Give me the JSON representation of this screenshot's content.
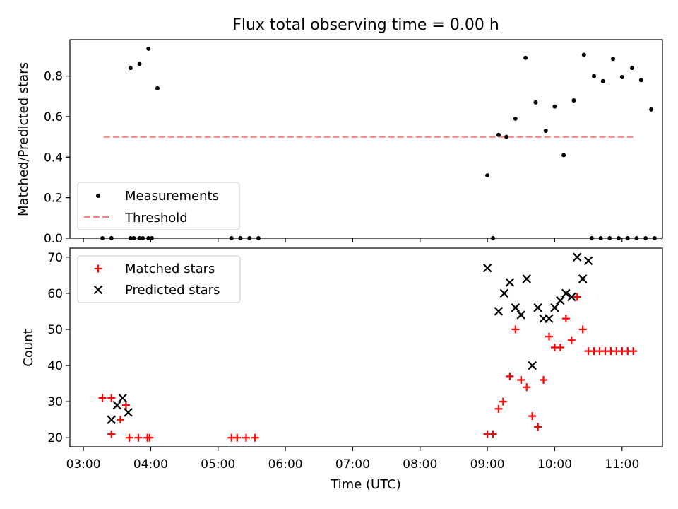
{
  "chart_data": [
    {
      "type": "scatter",
      "title": "Flux total observing time = 0.00 h",
      "ylabel": "Matched/Predicted stars",
      "xlabel": "",
      "ylim": [
        0,
        0.98
      ],
      "yticks": [
        "0.0",
        "0.2",
        "0.4",
        "0.6",
        "0.8"
      ],
      "ytick_values": [
        0,
        0.2,
        0.4,
        0.6,
        0.8
      ],
      "grid": false,
      "legend": {
        "placement": "lower-left",
        "entries": [
          "Measurements",
          "Threshold"
        ]
      },
      "series": [
        {
          "name": "Measurements",
          "marker": "dot",
          "color": "#000000",
          "points": [
            [
              "03:17",
              0
            ],
            [
              "03:25",
              0
            ],
            [
              "03:25",
              0
            ],
            [
              "03:42",
              0.84
            ],
            [
              "03:50",
              0.86
            ],
            [
              "03:58",
              0.935
            ],
            [
              "04:06",
              0.74
            ],
            [
              "03:42",
              0
            ],
            [
              "03:50",
              0
            ],
            [
              "03:58",
              0
            ],
            [
              "03:45",
              0
            ],
            [
              "03:53",
              0
            ],
            [
              "04:01",
              0
            ],
            [
              "05:12",
              0
            ],
            [
              "05:20",
              0
            ],
            [
              "05:28",
              0
            ],
            [
              "05:36",
              0
            ],
            [
              "09:00",
              0.31
            ],
            [
              "09:05",
              0
            ],
            [
              "09:10",
              0.51
            ],
            [
              "09:17",
              0.5
            ],
            [
              "09:25",
              0.59
            ],
            [
              "09:34",
              0.89
            ],
            [
              "09:43",
              0.67
            ],
            [
              "09:52",
              0.53
            ],
            [
              "10:00",
              0.65
            ],
            [
              "10:08",
              0.41
            ],
            [
              "10:17",
              0.68
            ],
            [
              "10:26",
              0.905
            ],
            [
              "10:35",
              0.8
            ],
            [
              "10:43",
              0.775
            ],
            [
              "10:52",
              0.885
            ],
            [
              "11:00",
              0.795
            ],
            [
              "11:09",
              0.84
            ],
            [
              "11:17",
              0.78
            ],
            [
              "11:26",
              0.635
            ],
            [
              "10:33",
              0
            ],
            [
              "10:41",
              0
            ],
            [
              "10:49",
              0
            ],
            [
              "10:57",
              0
            ],
            [
              "11:05",
              0
            ],
            [
              "11:13",
              0
            ],
            [
              "11:21",
              0
            ],
            [
              "11:29",
              0
            ],
            [
              "11:37",
              0
            ],
            [
              "11:45",
              0
            ]
          ]
        },
        {
          "name": "Threshold",
          "style": "dashed",
          "color": "#ff7f7f",
          "y": 0.5,
          "x_range": [
            "03:18",
            "11:12"
          ]
        }
      ]
    },
    {
      "type": "scatter",
      "title": "",
      "xlabel": "Time (UTC)",
      "ylabel": "Count",
      "ylim": [
        17.5,
        72.5
      ],
      "yticks": [
        "20",
        "30",
        "40",
        "50",
        "60",
        "70"
      ],
      "ytick_values": [
        20,
        30,
        40,
        50,
        60,
        70
      ],
      "xticks": [
        "03:00",
        "04:00",
        "05:00",
        "06:00",
        "07:00",
        "08:00",
        "09:00",
        "10:00",
        "11:00"
      ],
      "xlim": [
        "02:48",
        "11:36"
      ],
      "grid": false,
      "legend": {
        "placement": "top-left",
        "entries": [
          "Matched stars",
          "Predicted stars"
        ]
      },
      "series": [
        {
          "name": "Matched stars",
          "marker": "plus",
          "color": "#ff0000",
          "points": [
            [
              "03:17",
              31
            ],
            [
              "03:25",
              31
            ],
            [
              "03:25",
              21
            ],
            [
              "03:33",
              25
            ],
            [
              "03:38",
              29
            ],
            [
              "03:41",
              20
            ],
            [
              "03:49",
              20
            ],
            [
              "03:57",
              20
            ],
            [
              "03:59",
              20
            ],
            [
              "05:12",
              20
            ],
            [
              "05:17",
              20
            ],
            [
              "05:25",
              20
            ],
            [
              "05:33",
              20
            ],
            [
              "09:00",
              21
            ],
            [
              "09:05",
              21
            ],
            [
              "09:10",
              28
            ],
            [
              "09:14",
              30
            ],
            [
              "09:20",
              37
            ],
            [
              "09:25",
              50
            ],
            [
              "09:30",
              36
            ],
            [
              "09:35",
              34
            ],
            [
              "09:40",
              26
            ],
            [
              "09:45",
              23
            ],
            [
              "09:50",
              36
            ],
            [
              "09:55",
              48
            ],
            [
              "10:00",
              45
            ],
            [
              "10:05",
              45
            ],
            [
              "10:10",
              53
            ],
            [
              "10:15",
              47
            ],
            [
              "10:20",
              59
            ],
            [
              "10:25",
              50
            ],
            [
              "10:30",
              44
            ],
            [
              "10:35",
              44
            ],
            [
              "10:40",
              44
            ],
            [
              "10:45",
              44
            ],
            [
              "10:50",
              44
            ],
            [
              "10:55",
              44
            ],
            [
              "11:00",
              44
            ],
            [
              "11:05",
              44
            ],
            [
              "11:10",
              44
            ]
          ]
        },
        {
          "name": "Predicted stars",
          "marker": "x",
          "color": "#000000",
          "points": [
            [
              "03:25",
              25
            ],
            [
              "03:30",
              29
            ],
            [
              "03:35",
              31
            ],
            [
              "03:40",
              27
            ],
            [
              "09:00",
              67
            ],
            [
              "09:10",
              55
            ],
            [
              "09:15",
              60
            ],
            [
              "09:20",
              63
            ],
            [
              "09:25",
              56
            ],
            [
              "09:30",
              54
            ],
            [
              "09:35",
              64
            ],
            [
              "09:40",
              40
            ],
            [
              "09:45",
              56
            ],
            [
              "09:50",
              53
            ],
            [
              "09:55",
              53
            ],
            [
              "10:00",
              56
            ],
            [
              "10:05",
              58
            ],
            [
              "10:10",
              60
            ],
            [
              "10:15",
              59
            ],
            [
              "10:20",
              70
            ],
            [
              "10:25",
              64
            ],
            [
              "10:30",
              69
            ]
          ]
        }
      ]
    }
  ]
}
